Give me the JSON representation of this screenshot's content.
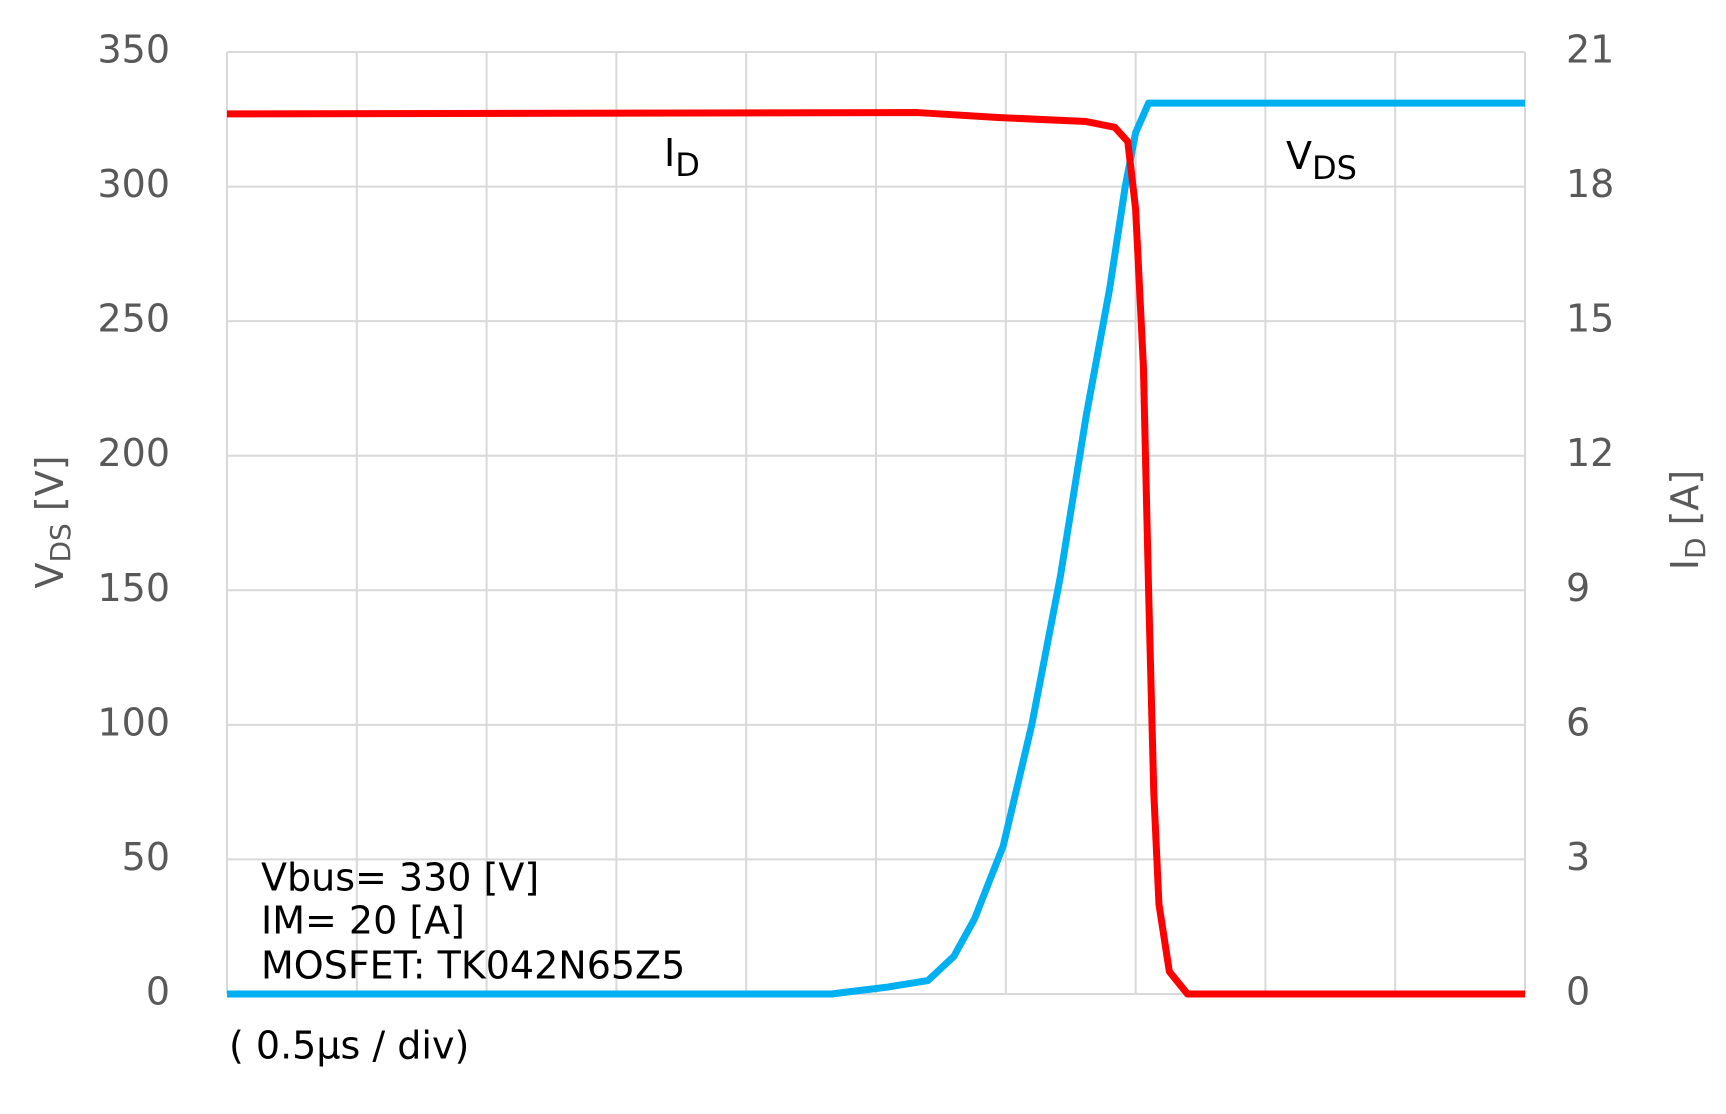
{
  "chart_data": {
    "type": "line",
    "ylabel": {
      "text": "V",
      "sub": "DS",
      "rest": " [V]"
    },
    "y2label": {
      "text": "I",
      "sub": "D",
      "rest": " [A]"
    },
    "xlim": [
      0,
      5
    ],
    "xticks": [
      0,
      0.5,
      1,
      1.5,
      2,
      2.5,
      3,
      3.5,
      4,
      4.5,
      5
    ],
    "ylim": [
      0,
      350
    ],
    "yticks": [
      0,
      50,
      100,
      150,
      200,
      250,
      300,
      350
    ],
    "y2lim": [
      0,
      21
    ],
    "y2ticks": [
      0,
      3,
      6,
      9,
      12,
      15,
      18,
      21
    ],
    "grid": true,
    "series": [
      {
        "name": "V",
        "name_sub": "DS",
        "color": "#00b0f0",
        "x": [
          0,
          2.33,
          2.37,
          2.54,
          2.7,
          2.8,
          2.88,
          2.99,
          3.1,
          3.21,
          3.31,
          3.4,
          3.46,
          3.5,
          3.55,
          5
        ],
        "values": [
          0,
          0,
          0.5,
          2.5,
          5,
          14,
          28,
          55,
          100,
          155,
          215,
          262,
          300,
          320,
          331,
          331
        ]
      },
      {
        "name": "I",
        "name_sub": "D",
        "color": "#ff0000",
        "axis": "y2",
        "x": [
          0,
          2.66,
          2.97,
          3.31,
          3.42,
          3.47,
          3.5,
          3.53,
          3.55,
          3.57,
          3.59,
          3.63,
          3.7,
          5
        ],
        "values": [
          19.62,
          19.65,
          19.54,
          19.45,
          19.32,
          19.0,
          17.5,
          14,
          9,
          4.5,
          2,
          0.5,
          0,
          0
        ]
      }
    ],
    "annotations": [
      "Vbus= 330 [V]",
      "IM= 20 [A]",
      "MOSFET: TK042N65Z5"
    ],
    "xlabel": "( 0.5μs / div)"
  }
}
